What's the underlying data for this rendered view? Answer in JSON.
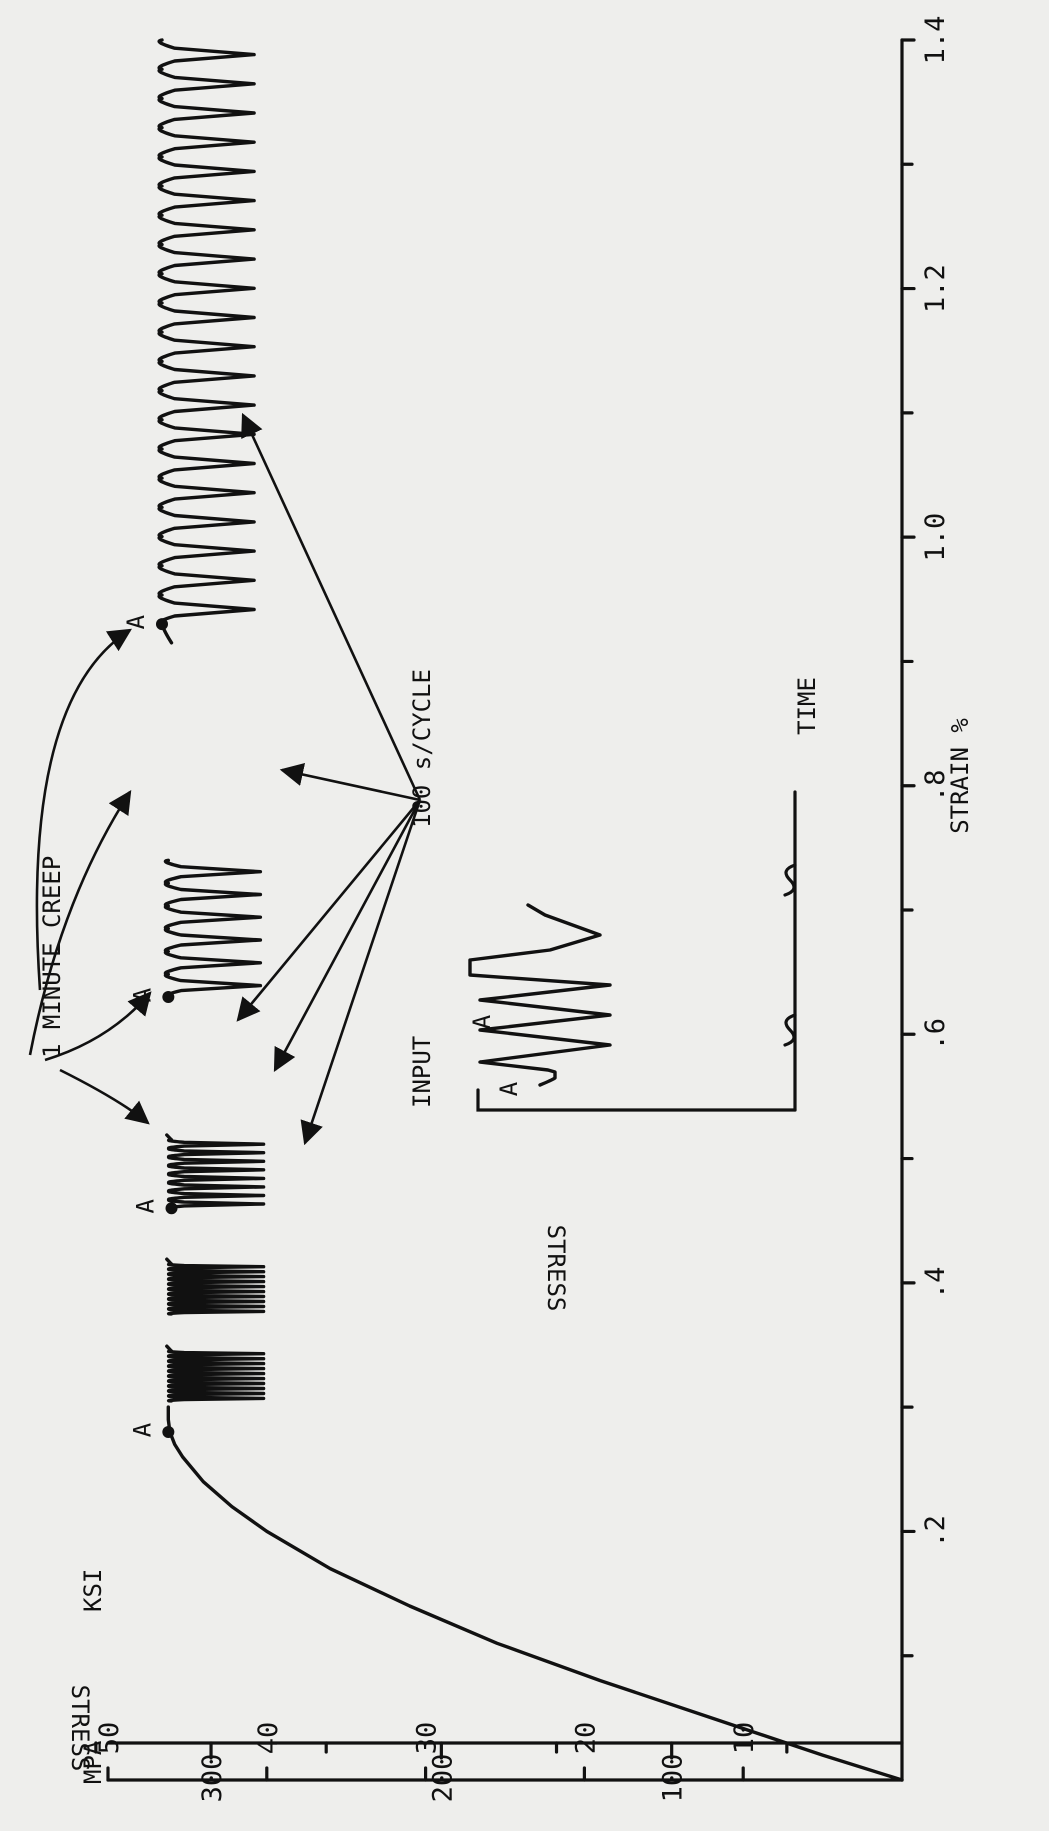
{
  "chart_data": {
    "type": "line",
    "title": "",
    "xlabel": "STRAIN %",
    "ylabel": "STRESS",
    "y_units": [
      "MPA",
      "KSI"
    ],
    "xlim": [
      0,
      1.4
    ],
    "ylim_ksi": [
      0,
      50
    ],
    "ylim_mpa": [
      0,
      345
    ],
    "x_ticks": [
      {
        "value": 0.2,
        "label": ".2"
      },
      {
        "value": 0.4,
        "label": ".4"
      },
      {
        "value": 0.6,
        "label": ".6"
      },
      {
        "value": 0.8,
        "label": ".8"
      },
      {
        "value": 1.0,
        "label": "1.0"
      },
      {
        "value": 1.2,
        "label": "1.2"
      },
      {
        "value": 1.4,
        "label": "1.4"
      }
    ],
    "ksi_ticks": [
      {
        "value": 10,
        "label": "10"
      },
      {
        "value": 20,
        "label": "20"
      },
      {
        "value": 30,
        "label": "30"
      },
      {
        "value": 40,
        "label": "40"
      },
      {
        "value": 50,
        "label": "50"
      }
    ],
    "mpa_ticks": [
      {
        "value": 100,
        "label": "100"
      },
      {
        "value": 200,
        "label": "200"
      },
      {
        "value": 300,
        "label": "300"
      }
    ],
    "loading_curve": {
      "x": [
        0.0,
        0.02,
        0.05,
        0.08,
        0.11,
        0.14,
        0.17,
        0.2,
        0.22,
        0.24,
        0.26,
        0.27,
        0.28,
        0.29,
        0.3
      ],
      "y": [
        0,
        5,
        12,
        19,
        25.5,
        31,
        36,
        40,
        42.2,
        44,
        45.3,
        45.8,
        46.1,
        46.2,
        46.2
      ]
    },
    "creep_points": [
      {
        "label": "A",
        "x": 0.28,
        "y": 46.2
      },
      {
        "label": "A",
        "x": 0.46,
        "y": 46.0
      },
      {
        "label": "A",
        "x": 0.63,
        "y": 46.2
      },
      {
        "label": "A",
        "x": 0.93,
        "y": 46.6
      }
    ],
    "cycle_blocks": [
      {
        "x_start": 0.305,
        "x_end": 0.345,
        "count": 10,
        "y_max": 46.0,
        "y_min": 40.2
      },
      {
        "x_start": 0.375,
        "x_end": 0.415,
        "count": 10,
        "y_max": 46.0,
        "y_min": 40.2
      },
      {
        "x_start": 0.46,
        "x_end": 0.515,
        "count": 8,
        "y_max": 46.0,
        "y_min": 40.2
      },
      {
        "x_start": 0.63,
        "x_end": 0.74,
        "count": 6,
        "y_max": 46.2,
        "y_min": 40.4
      },
      {
        "x_start": 0.93,
        "x_end": 1.4,
        "count": 20,
        "y_max": 46.6,
        "y_min": 40.8
      }
    ],
    "annotations": [
      {
        "text": "1 MINUTE CREEP"
      },
      {
        "text": "100 s/CYCLE"
      },
      {
        "text": "A"
      }
    ],
    "inset": {
      "xlabel": "TIME",
      "ylabel": "STRESS",
      "title": "INPUT",
      "marker": "A"
    },
    "grid": false,
    "legend": "none"
  }
}
